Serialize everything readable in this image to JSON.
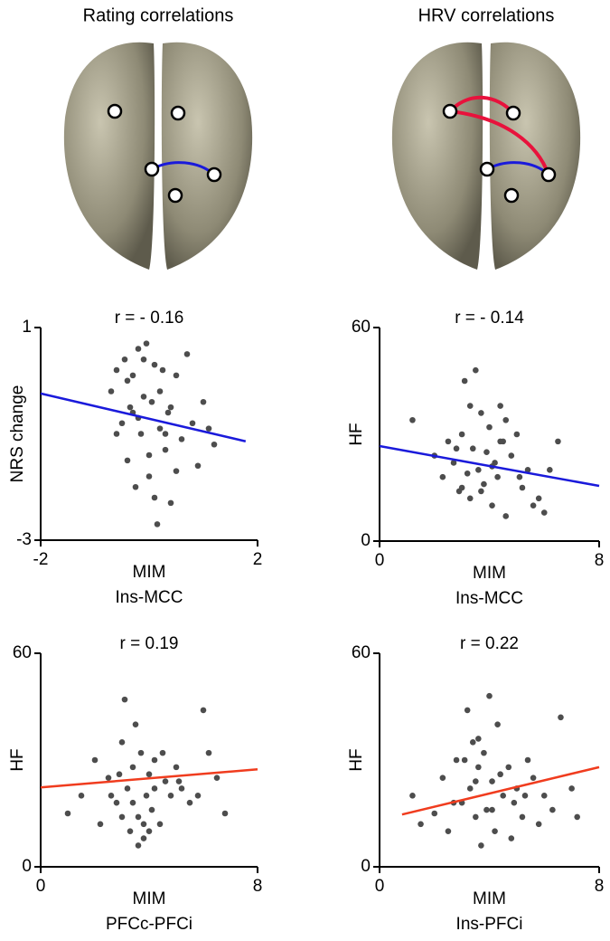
{
  "columns": [
    "Rating correlations",
    "HRV correlations"
  ],
  "chart_data": [
    {
      "type": "scatter",
      "title": "r = - 0.16",
      "ylabel": "NRS change",
      "xlabel": "MIM",
      "xlabel2": "Ins-MCC",
      "xlim": [
        -2,
        2
      ],
      "ylim": [
        -3,
        1
      ],
      "xticks": [
        -2,
        2
      ],
      "yticks": [
        -3,
        1
      ],
      "color": "#4d4d4d",
      "x": [
        -0.7,
        -0.6,
        -0.5,
        -0.45,
        -0.4,
        -0.35,
        -0.3,
        -0.25,
        -0.2,
        -0.15,
        -0.1,
        -0.05,
        0,
        0.05,
        0.1,
        0.15,
        0.2,
        0.25,
        0.3,
        0.35,
        0.4,
        0.5,
        0.6,
        0.7,
        0.8,
        0.9,
        1.0,
        1.1,
        1.2,
        -0.6,
        -0.4,
        -0.2,
        0,
        0.2,
        0.4,
        -0.3,
        0.1,
        0.5,
        -0.1,
        0.3
      ],
      "values": [
        -0.2,
        0.2,
        -0.8,
        0.4,
        -1.5,
        -0.5,
        0.1,
        -2.0,
        0.6,
        -1.0,
        -0.3,
        0.7,
        -1.8,
        -0.4,
        0.3,
        -2.7,
        -0.9,
        0.2,
        -1.3,
        -0.6,
        -2.3,
        0.1,
        -1.1,
        0.5,
        -0.8,
        -1.6,
        -0.4,
        -0.9,
        -1.2,
        -1.0,
        0.0,
        -0.7,
        -1.4,
        -0.2,
        -0.5,
        -0.6,
        -2.2,
        -1.7,
        0.4,
        -1.0
      ],
      "fit": {
        "color": "#1a1adb",
        "x": [
          -2,
          1.78
        ],
        "values": [
          -0.24,
          -1.14
        ]
      }
    },
    {
      "type": "scatter",
      "title": "r = - 0.14",
      "ylabel": "HF",
      "xlabel": "MIM",
      "xlabel2": "Ins-MCC",
      "xlim": [
        0,
        8
      ],
      "ylim": [
        0,
        60
      ],
      "xticks": [
        0,
        8
      ],
      "yticks": [
        0,
        60
      ],
      "color": "#4d4d4d",
      "x": [
        1.2,
        2.0,
        2.3,
        2.5,
        2.7,
        2.9,
        3.0,
        3.1,
        3.2,
        3.3,
        3.4,
        3.5,
        3.6,
        3.7,
        3.8,
        3.9,
        4.0,
        4.1,
        4.2,
        4.3,
        4.4,
        4.5,
        4.6,
        4.8,
        5.0,
        5.2,
        5.4,
        5.6,
        5.8,
        6.0,
        6.2,
        6.5,
        2.8,
        3.3,
        3.7,
        4.1,
        4.6,
        5.1,
        3.0,
        4.4
      ],
      "values": [
        34,
        24,
        18,
        28,
        22,
        14,
        30,
        45,
        19,
        12,
        26,
        48,
        20,
        36,
        16,
        25,
        32,
        10,
        22,
        18,
        38,
        28,
        7,
        24,
        30,
        15,
        20,
        10,
        12,
        8,
        20,
        28,
        26,
        38,
        14,
        21,
        34,
        18,
        15,
        28
      ],
      "fit": {
        "color": "#1a1adb",
        "x": [
          0,
          8
        ],
        "values": [
          26.7,
          15.5
        ]
      }
    },
    {
      "type": "scatter",
      "title": "r = 0.19",
      "ylabel": "HF",
      "xlabel": "MIM",
      "xlabel2": "PFCc-PFCi",
      "xlim": [
        0,
        8
      ],
      "ylim": [
        0,
        60
      ],
      "xticks": [
        0,
        8
      ],
      "yticks": [
        0,
        60
      ],
      "color": "#4d4d4d",
      "x": [
        1,
        1.5,
        2,
        2.2,
        2.5,
        2.8,
        3,
        3.1,
        3.2,
        3.3,
        3.4,
        3.5,
        3.6,
        3.7,
        3.8,
        3.9,
        4,
        4.1,
        4.2,
        4.4,
        4.6,
        4.8,
        5,
        5.2,
        5.5,
        5.8,
        6,
        6.2,
        6.5,
        6.8,
        2.6,
        3.0,
        3.4,
        3.8,
        4.2,
        4.5,
        3.6,
        2.9,
        4.0,
        5.1
      ],
      "values": [
        15,
        20,
        30,
        12,
        25,
        18,
        35,
        47,
        22,
        10,
        28,
        40,
        14,
        32,
        8,
        20,
        26,
        16,
        30,
        12,
        24,
        20,
        28,
        22,
        18,
        20,
        44,
        32,
        25,
        15,
        20,
        14,
        18,
        12,
        22,
        32,
        6,
        26,
        10,
        24
      ],
      "fit": {
        "color": "#f03c1e",
        "x": [
          0,
          8
        ],
        "values": [
          22.3,
          27.4
        ]
      }
    },
    {
      "type": "scatter",
      "title": "r = 0.22",
      "ylabel": "HF",
      "xlabel": "MIM",
      "xlabel2": "Ins-PFCi",
      "xlim": [
        0,
        8
      ],
      "ylim": [
        0,
        60
      ],
      "xticks": [
        0,
        8
      ],
      "yticks": [
        0,
        60
      ],
      "color": "#4d4d4d",
      "x": [
        1.2,
        1.5,
        2,
        2.3,
        2.5,
        2.8,
        3,
        3.2,
        3.3,
        3.4,
        3.5,
        3.6,
        3.7,
        3.8,
        3.9,
        4,
        4.1,
        4.2,
        4.3,
        4.5,
        4.7,
        4.9,
        5,
        5.2,
        5.4,
        5.6,
        5.8,
        6,
        6.3,
        6.6,
        7,
        7.2,
        2.7,
        3.1,
        3.6,
        4.4,
        4.8,
        5.3,
        3.5,
        4.1
      ],
      "values": [
        20,
        12,
        15,
        25,
        10,
        30,
        18,
        44,
        22,
        35,
        14,
        28,
        6,
        32,
        16,
        48,
        24,
        10,
        40,
        20,
        28,
        18,
        22,
        14,
        30,
        25,
        12,
        20,
        16,
        42,
        22,
        14,
        18,
        30,
        36,
        26,
        8,
        20,
        24,
        16
      ],
      "fit": {
        "color": "#f03c1e",
        "x": [
          0.82,
          8
        ],
        "values": [
          14.7,
          28
        ]
      }
    }
  ]
}
